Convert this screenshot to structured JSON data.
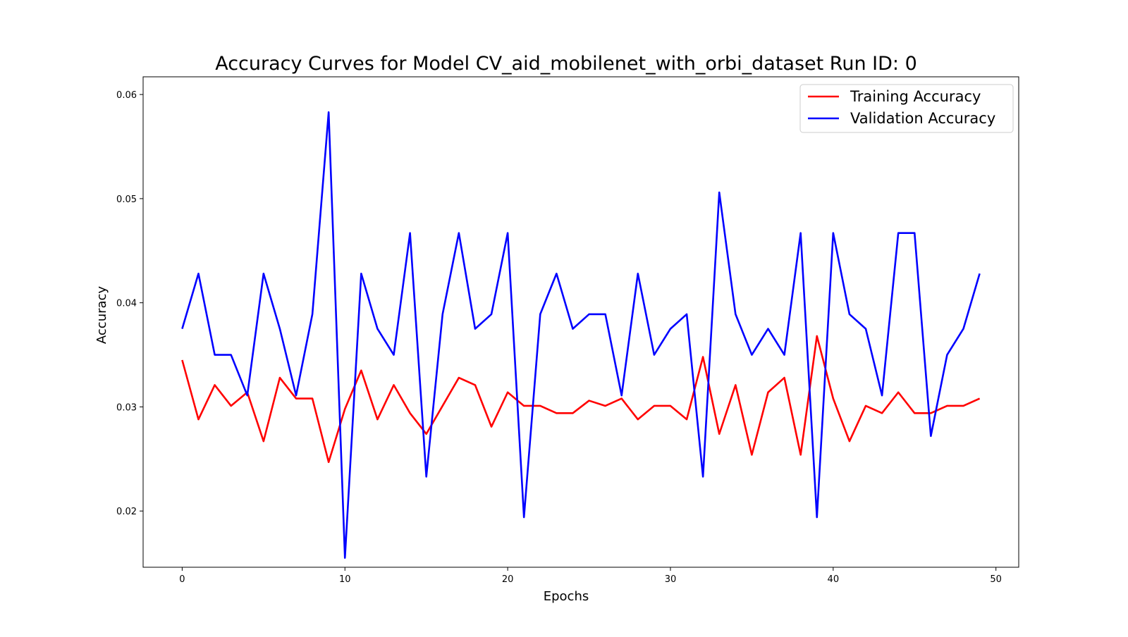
{
  "chart_data": {
    "type": "line",
    "title": "Accuracy Curves for Model CV_aid_mobilenet_with_orbi_dataset Run ID: 0",
    "xlabel": "Epochs",
    "ylabel": "Accuracy",
    "xlim": [
      -2.4,
      51.4
    ],
    "ylim": [
      0.0146,
      0.0617
    ],
    "xticks": [
      0,
      10,
      20,
      30,
      40,
      50
    ],
    "xtick_labels": [
      "0",
      "10",
      "20",
      "30",
      "40",
      "50"
    ],
    "yticks": [
      0.02,
      0.03,
      0.04,
      0.05,
      0.06
    ],
    "ytick_labels": [
      "0.02",
      "0.03",
      "0.04",
      "0.05",
      "0.06"
    ],
    "grid": false,
    "legend_position": "top-right",
    "x": [
      0,
      1,
      2,
      3,
      4,
      5,
      6,
      7,
      8,
      9,
      10,
      11,
      12,
      13,
      14,
      15,
      16,
      17,
      18,
      19,
      20,
      21,
      22,
      23,
      24,
      25,
      26,
      27,
      28,
      29,
      30,
      31,
      32,
      33,
      34,
      35,
      36,
      37,
      38,
      39,
      40,
      41,
      42,
      43,
      44,
      45,
      46,
      47,
      48,
      49
    ],
    "series": [
      {
        "name": "Training Accuracy",
        "color": "#ff0000",
        "values": [
          0.0345,
          0.0288,
          0.0321,
          0.0301,
          0.0314,
          0.0267,
          0.0328,
          0.0308,
          0.0308,
          0.0247,
          0.0298,
          0.0335,
          0.0288,
          0.0321,
          0.0294,
          0.0274,
          0.0301,
          0.0328,
          0.0321,
          0.0281,
          0.0314,
          0.0301,
          0.0301,
          0.0294,
          0.0294,
          0.0306,
          0.0301,
          0.0308,
          0.0288,
          0.0301,
          0.0301,
          0.0288,
          0.0348,
          0.0274,
          0.0321,
          0.0254,
          0.0314,
          0.0328,
          0.0254,
          0.0368,
          0.0308,
          0.0267,
          0.0301,
          0.0294,
          0.0314,
          0.0294,
          0.0294,
          0.0301,
          0.0301,
          0.0308
        ]
      },
      {
        "name": "Validation Accuracy",
        "color": "#0000ff",
        "values": [
          0.0375,
          0.0428,
          0.035,
          0.035,
          0.0311,
          0.0428,
          0.0375,
          0.0311,
          0.0389,
          0.0583,
          0.0155,
          0.0428,
          0.0375,
          0.035,
          0.0467,
          0.0233,
          0.0389,
          0.0467,
          0.0375,
          0.0389,
          0.0467,
          0.0194,
          0.0389,
          0.0428,
          0.0375,
          0.0389,
          0.0389,
          0.0311,
          0.0428,
          0.035,
          0.0375,
          0.0389,
          0.0233,
          0.0506,
          0.0389,
          0.035,
          0.0375,
          0.035,
          0.0467,
          0.0194,
          0.0467,
          0.0389,
          0.0375,
          0.0311,
          0.0467,
          0.0467,
          0.0272,
          0.035,
          0.0375,
          0.0428
        ]
      }
    ]
  }
}
